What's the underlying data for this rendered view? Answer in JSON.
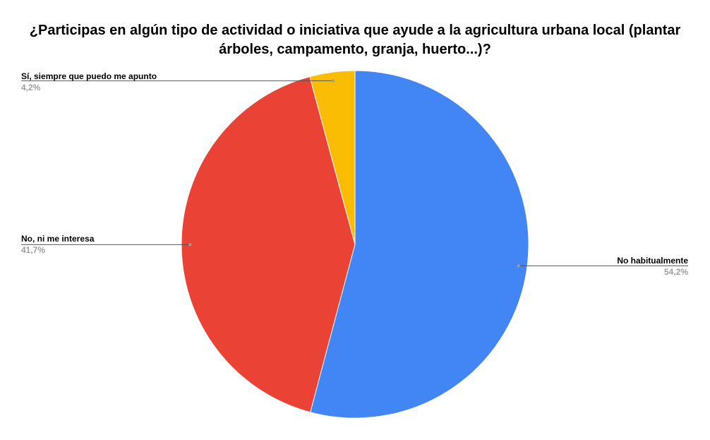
{
  "chart_data": {
    "type": "pie",
    "title_line1": "¿Participas en algún tipo de actividad o iniciativa que ayude a la agricultura urbana local (plantar",
    "title_line2": "árboles, campamento, granja, huerto...)?",
    "slices": [
      {
        "label": "No habitualmente",
        "value": 54.2,
        "value_label": "54,2%",
        "color": "#4285f4"
      },
      {
        "label": "No, ni me interesa",
        "value": 41.7,
        "value_label": "41,7%",
        "color": "#ea4335"
      },
      {
        "label": "Sí, siempre que puedo me apunto",
        "value": 4.2,
        "value_label": "4,2%",
        "color": "#fbbc04"
      }
    ],
    "legend": "labels outside with leader lines"
  }
}
